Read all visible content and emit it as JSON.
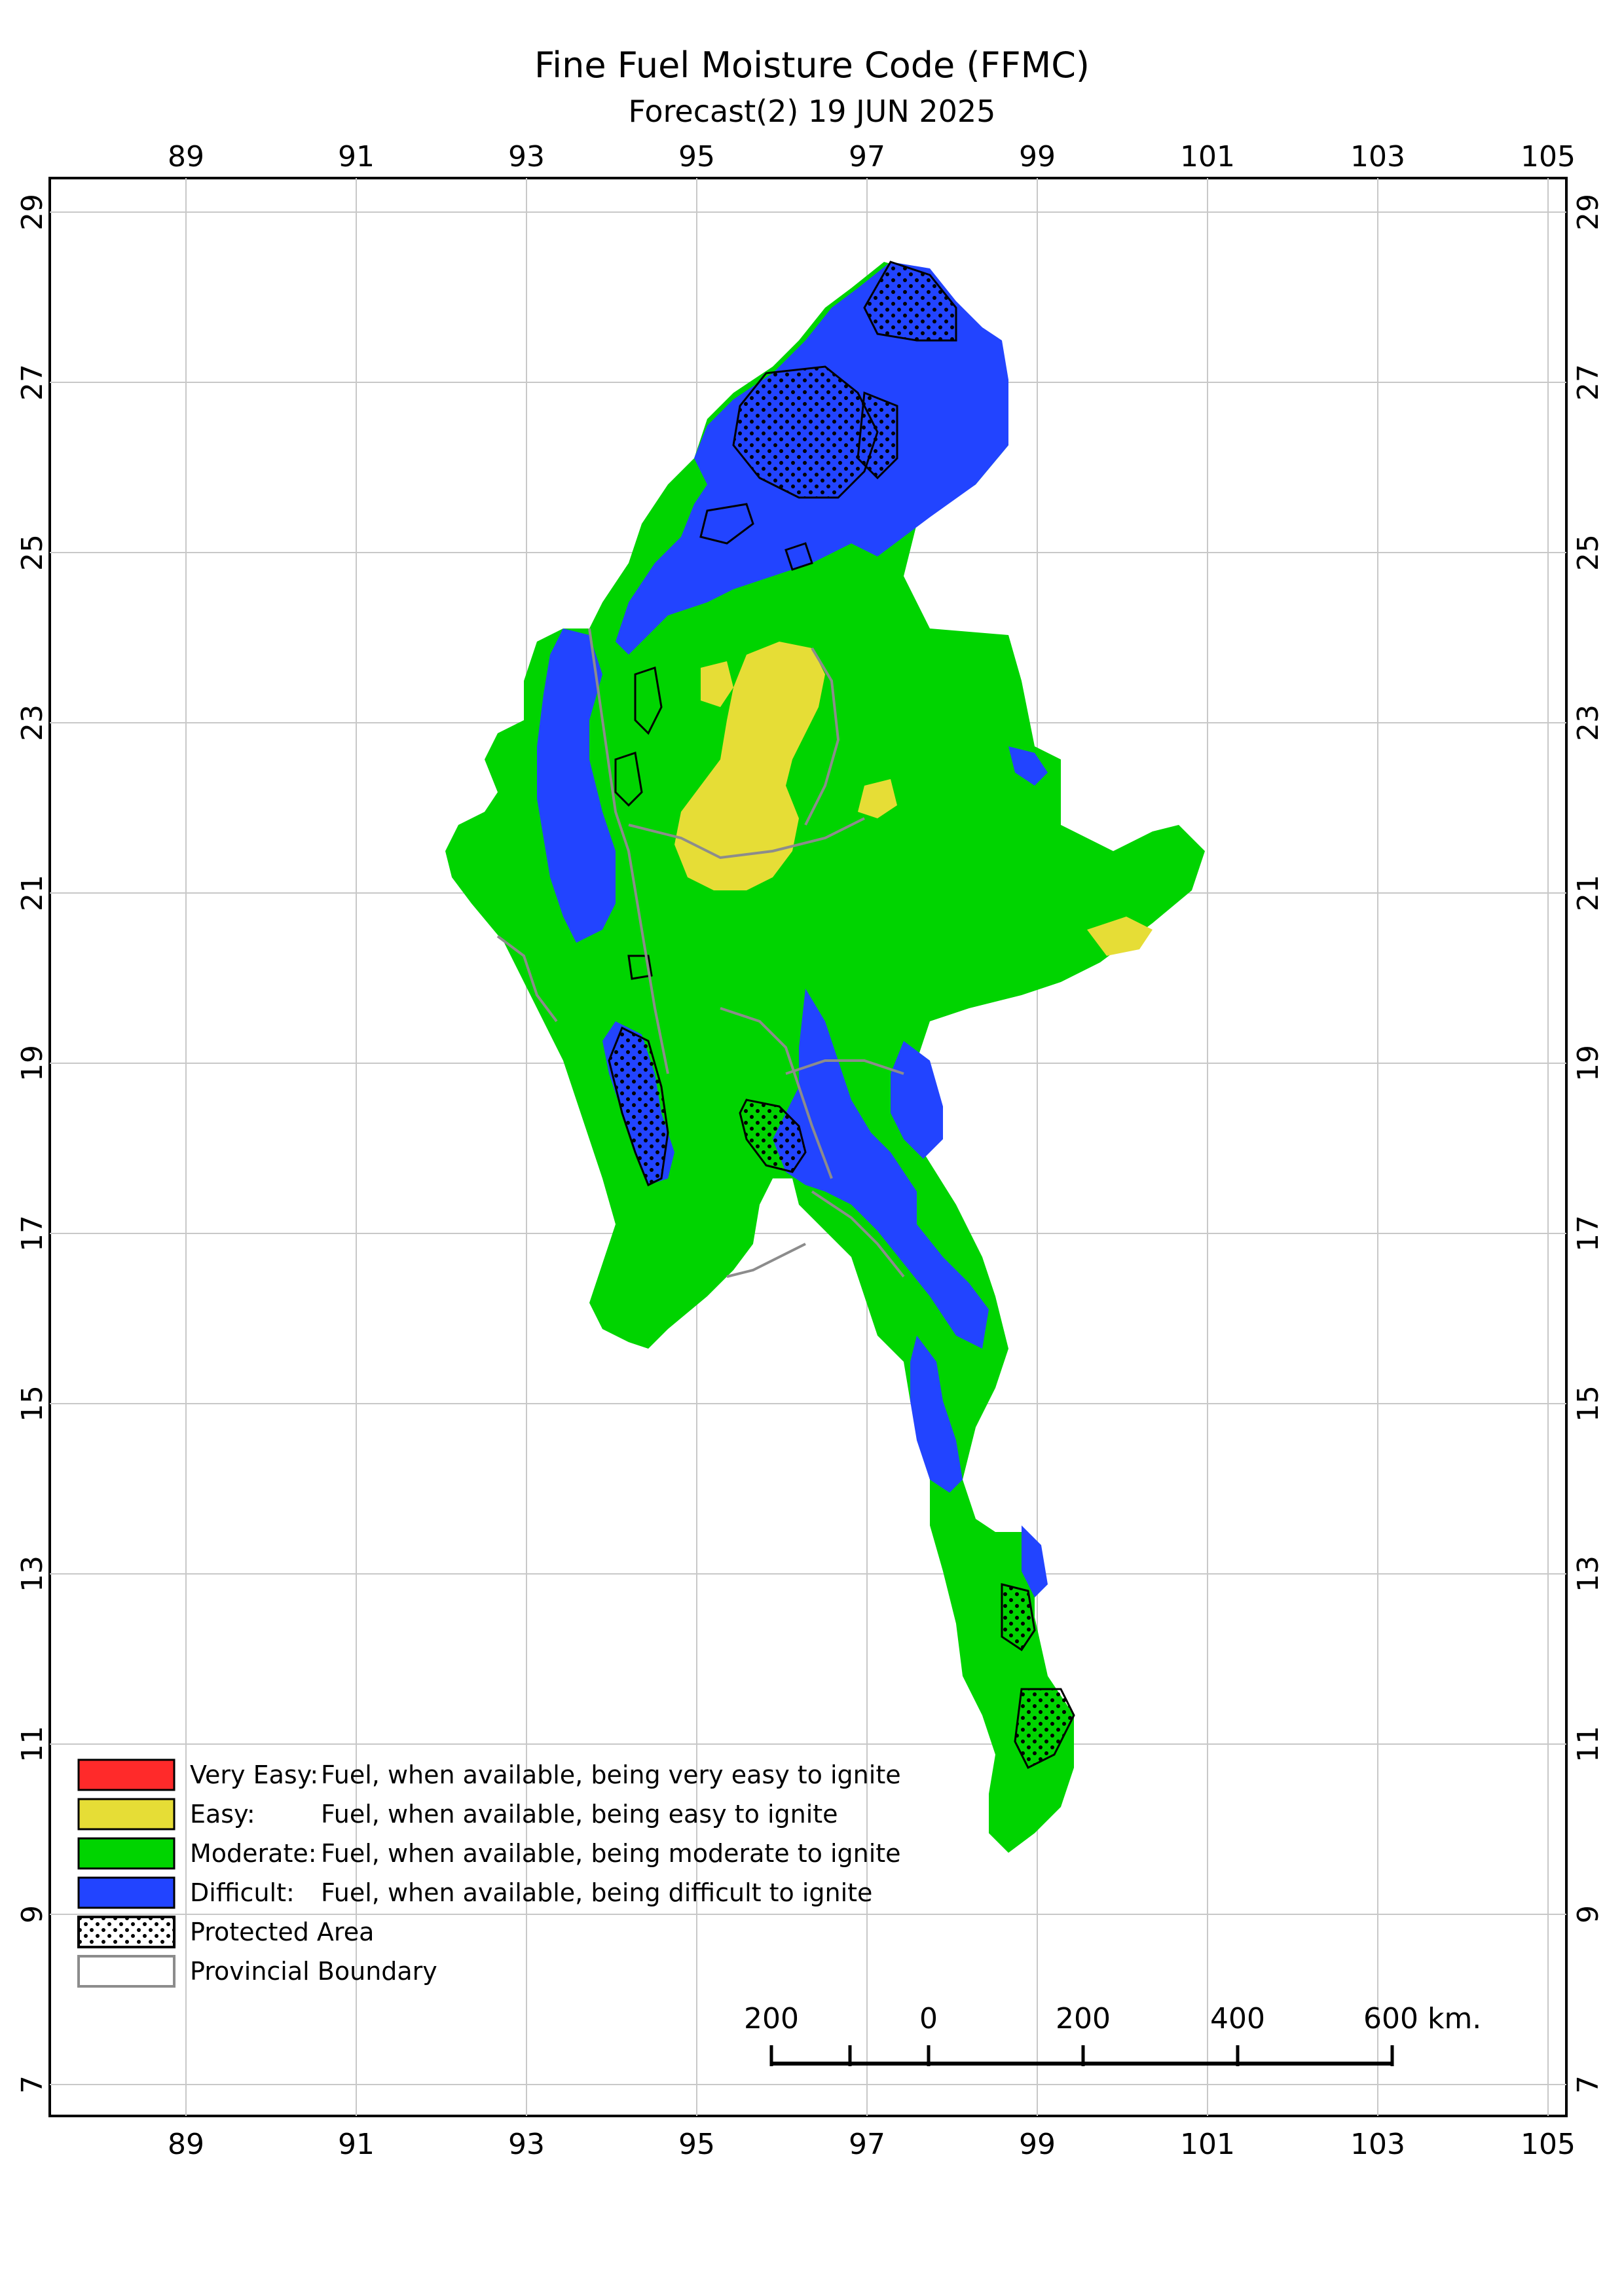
{
  "title": "Fine Fuel Moisture Code (FFMC)",
  "subtitle": "Forecast(2) 19 JUN 2025",
  "axes": {
    "lon_ticks": [
      "89",
      "91",
      "93",
      "95",
      "97",
      "99",
      "101",
      "103",
      "105"
    ],
    "lat_ticks": [
      "29",
      "27",
      "25",
      "23",
      "21",
      "19",
      "17",
      "15",
      "13",
      "11",
      "9",
      "7"
    ]
  },
  "legend": {
    "items": [
      {
        "key": "very_easy",
        "name": "Very Easy:",
        "desc": "Fuel, when available, being very easy to ignite",
        "color": "#ff2a2a"
      },
      {
        "key": "easy",
        "name": "Easy:",
        "desc": "Fuel, when available, being easy to ignite",
        "color": "#e6dd36"
      },
      {
        "key": "moderate",
        "name": "Moderate:",
        "desc": "Fuel, when available, being moderate to ignite",
        "color": "#00d400"
      },
      {
        "key": "difficult",
        "name": "Difficult:",
        "desc": "Fuel, when available, being difficult to ignite",
        "color": "#2244ff"
      }
    ],
    "protected_area": "Protected Area",
    "provincial_boundary": "Provincial Boundary"
  },
  "scale_bar": {
    "labels": [
      "200",
      "0",
      "200",
      "400",
      "600 km."
    ]
  },
  "colors": {
    "moderate": "#00d400",
    "easy": "#e6dd36",
    "difficult": "#2244ff",
    "very_easy": "#ff2a2a",
    "boundary": "#8c8c8c",
    "grid": "#c8c8c8"
  }
}
